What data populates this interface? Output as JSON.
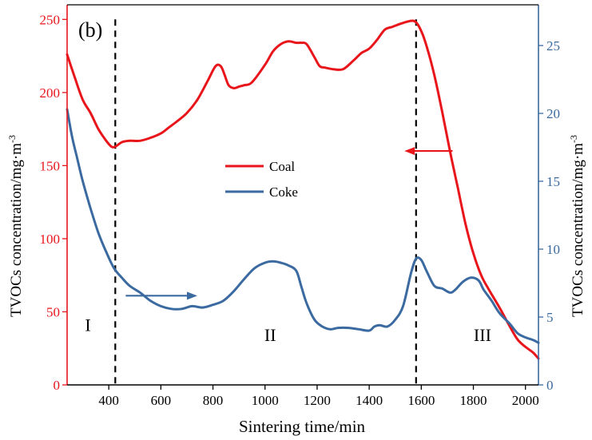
{
  "panel_label": "(b)",
  "colors": {
    "coal": "#e8151b",
    "coke": "#3a6aa0",
    "axis": "#000000"
  },
  "chart_data": {
    "type": "line",
    "xlabel": "Sintering time/min",
    "ylabel_left": "TVOCs concentration/mg·m-3",
    "ylabel_right": "TVOCs concentration/mg·m-3",
    "ylabel_base": "TVOCs concentration/mg·m",
    "ylabel_sup": "-3",
    "xlim": [
      240,
      2050
    ],
    "ylim_left": [
      0,
      260
    ],
    "ylim_right": [
      0,
      28
    ],
    "x_ticks": [
      400,
      600,
      800,
      1000,
      1200,
      1400,
      1600,
      1800,
      2000
    ],
    "y_left_ticks": [
      0,
      50,
      100,
      150,
      200,
      250
    ],
    "y_right_ticks": [
      0,
      5,
      10,
      15,
      20,
      25
    ],
    "legend": {
      "position": "center-left",
      "entries": [
        "Coal",
        "Coke"
      ]
    },
    "stage_labels": [
      {
        "text": "I",
        "x": 320,
        "y_left": 37
      },
      {
        "text": "II",
        "x": 1020,
        "y_left": 30
      },
      {
        "text": "III",
        "x": 1835,
        "y_left": 30
      }
    ],
    "dividers_x": [
      425,
      1580
    ],
    "arrows": [
      {
        "series": "Coal",
        "direction": "left",
        "from": [
          1720,
          160
        ],
        "to": [
          1535,
          160
        ]
      },
      {
        "series": "Coke",
        "direction": "right",
        "from": [
          465,
          61
        ],
        "to": [
          740,
          61
        ]
      }
    ],
    "series": [
      {
        "name": "Coal",
        "axis": "left",
        "x": [
          240,
          270,
          300,
          330,
          360,
          390,
          410,
          425,
          450,
          480,
          520,
          560,
          600,
          630,
          660,
          700,
          740,
          780,
          810,
          830,
          845,
          860,
          880,
          900,
          920,
          950,
          1000,
          1030,
          1060,
          1090,
          1120,
          1140,
          1160,
          1190,
          1210,
          1230,
          1260,
          1300,
          1340,
          1370,
          1400,
          1430,
          1460,
          1490,
          1520,
          1560,
          1580,
          1600,
          1620,
          1650,
          1680,
          1710,
          1740,
          1770,
          1800,
          1830,
          1860,
          1900,
          1940,
          1970,
          2000,
          2030,
          2050
        ],
        "y": [
          226,
          210,
          195,
          186,
          175,
          167,
          163,
          163,
          166,
          167,
          167,
          169,
          172,
          176,
          180,
          186,
          195,
          208,
          218,
          218,
          212,
          205,
          203,
          204,
          205,
          207,
          219,
          228,
          233,
          235,
          234,
          234,
          233,
          224,
          218,
          217,
          216,
          216,
          222,
          227,
          230,
          236,
          243,
          245,
          247,
          249,
          248,
          242,
          232,
          212,
          187,
          160,
          135,
          110,
          90,
          75,
          65,
          53,
          40,
          31,
          26,
          22,
          18
        ]
      },
      {
        "name": "Coke",
        "axis": "right",
        "x": [
          240,
          260,
          280,
          300,
          330,
          360,
          390,
          420,
          450,
          480,
          520,
          560,
          600,
          640,
          680,
          720,
          760,
          800,
          840,
          880,
          920,
          960,
          1000,
          1030,
          1060,
          1090,
          1120,
          1140,
          1160,
          1190,
          1220,
          1250,
          1280,
          1320,
          1360,
          1400,
          1420,
          1440,
          1470,
          1500,
          1530,
          1560,
          1580,
          1600,
          1620,
          1650,
          1680,
          1710,
          1730,
          1760,
          1790,
          1820,
          1840,
          1870,
          1900,
          1940,
          1970,
          2000,
          2030,
          2050
        ],
        "y": [
          20.3,
          18.2,
          16.6,
          15.0,
          13.0,
          11.2,
          9.8,
          8.6,
          7.9,
          7.3,
          6.8,
          6.2,
          5.8,
          5.6,
          5.6,
          5.8,
          5.7,
          5.9,
          6.2,
          6.9,
          7.8,
          8.6,
          9.0,
          9.1,
          9.0,
          8.8,
          8.4,
          7.2,
          6.0,
          4.8,
          4.3,
          4.1,
          4.2,
          4.2,
          4.1,
          4.0,
          4.3,
          4.4,
          4.3,
          4.8,
          5.8,
          8.2,
          9.3,
          9.2,
          8.4,
          7.3,
          7.1,
          6.8,
          7.0,
          7.6,
          7.9,
          7.7,
          7.0,
          6.2,
          5.3,
          4.5,
          3.8,
          3.5,
          3.3,
          3.1
        ]
      }
    ]
  }
}
